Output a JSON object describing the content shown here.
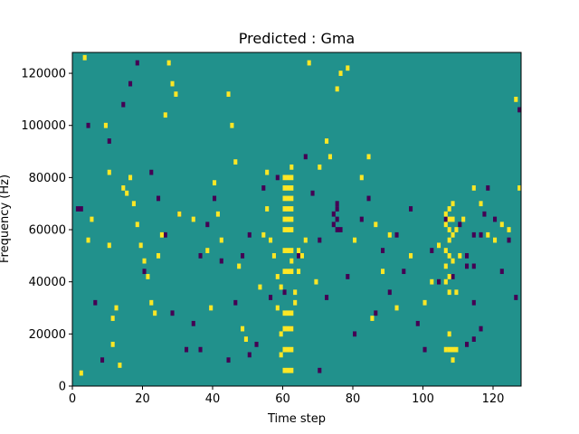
{
  "chart_data": {
    "type": "heatmap",
    "title": "Predicted : Gma",
    "xlabel": "Time step",
    "ylabel": "Frequency (Hz)",
    "xlim": [
      0,
      128
    ],
    "ylim": [
      0,
      128000
    ],
    "x_ticks": [
      0,
      20,
      40,
      60,
      80,
      100,
      120
    ],
    "y_ticks": [
      0,
      20000,
      40000,
      60000,
      80000,
      100000,
      120000
    ],
    "y_tick_labels": [
      "0",
      "20000",
      "40000",
      "60000",
      "80000",
      "100000",
      "120000"
    ],
    "grid": false,
    "legend": "none",
    "colors": {
      "background": "#21918c",
      "high": "#fde725",
      "low": "#440154"
    },
    "cells_note_free": true,
    "high_cells": [
      [
        2,
        5
      ],
      [
        3,
        126
      ],
      [
        4,
        56
      ],
      [
        5,
        64
      ],
      [
        9,
        100
      ],
      [
        10,
        54
      ],
      [
        10,
        82
      ],
      [
        11,
        26
      ],
      [
        11,
        16
      ],
      [
        12,
        30
      ],
      [
        13,
        8
      ],
      [
        14,
        76
      ],
      [
        15,
        74
      ],
      [
        16,
        80
      ],
      [
        17,
        70
      ],
      [
        18,
        62
      ],
      [
        19,
        54
      ],
      [
        20,
        48
      ],
      [
        21,
        42
      ],
      [
        22,
        32
      ],
      [
        23,
        28
      ],
      [
        24,
        50
      ],
      [
        25,
        58
      ],
      [
        26,
        104
      ],
      [
        27,
        124
      ],
      [
        28,
        116
      ],
      [
        29,
        112
      ],
      [
        30,
        66
      ],
      [
        34,
        64
      ],
      [
        38,
        52
      ],
      [
        39,
        30
      ],
      [
        40,
        78
      ],
      [
        41,
        66
      ],
      [
        42,
        56
      ],
      [
        44,
        112
      ],
      [
        45,
        100
      ],
      [
        46,
        86
      ],
      [
        47,
        46
      ],
      [
        48,
        22
      ],
      [
        49,
        18
      ],
      [
        53,
        38
      ],
      [
        54,
        58
      ],
      [
        55,
        82
      ],
      [
        55,
        68
      ],
      [
        56,
        56
      ],
      [
        57,
        50
      ],
      [
        58,
        30
      ],
      [
        58,
        42
      ],
      [
        59,
        38
      ],
      [
        59,
        20
      ],
      [
        59,
        12
      ],
      [
        60,
        6
      ],
      [
        60,
        14
      ],
      [
        60,
        22
      ],
      [
        60,
        28
      ],
      [
        60,
        44
      ],
      [
        60,
        52
      ],
      [
        60,
        60
      ],
      [
        60,
        64
      ],
      [
        60,
        68
      ],
      [
        60,
        72
      ],
      [
        60,
        76
      ],
      [
        60,
        80
      ],
      [
        61,
        6
      ],
      [
        61,
        14
      ],
      [
        61,
        22
      ],
      [
        61,
        28
      ],
      [
        61,
        44
      ],
      [
        61,
        52
      ],
      [
        61,
        60
      ],
      [
        61,
        64
      ],
      [
        61,
        68
      ],
      [
        61,
        72
      ],
      [
        61,
        76
      ],
      [
        61,
        80
      ],
      [
        62,
        6
      ],
      [
        62,
        14
      ],
      [
        62,
        22
      ],
      [
        62,
        28
      ],
      [
        62,
        44
      ],
      [
        62,
        48
      ],
      [
        62,
        52
      ],
      [
        62,
        60
      ],
      [
        62,
        64
      ],
      [
        62,
        68
      ],
      [
        62,
        72
      ],
      [
        62,
        76
      ],
      [
        62,
        80
      ],
      [
        62,
        84
      ],
      [
        63,
        32
      ],
      [
        63,
        36
      ],
      [
        64,
        44
      ],
      [
        64,
        52
      ],
      [
        65,
        50
      ],
      [
        66,
        56
      ],
      [
        67,
        124
      ],
      [
        69,
        40
      ],
      [
        70,
        84
      ],
      [
        72,
        94
      ],
      [
        73,
        88
      ],
      [
        75,
        114
      ],
      [
        76,
        120
      ],
      [
        78,
        122
      ],
      [
        80,
        56
      ],
      [
        82,
        80
      ],
      [
        84,
        88
      ],
      [
        85,
        26
      ],
      [
        86,
        62
      ],
      [
        88,
        44
      ],
      [
        90,
        58
      ],
      [
        92,
        30
      ],
      [
        96,
        50
      ],
      [
        100,
        32
      ],
      [
        102,
        40
      ],
      [
        104,
        54
      ],
      [
        106,
        14
      ],
      [
        106,
        40
      ],
      [
        106,
        46
      ],
      [
        106,
        52
      ],
      [
        106,
        62
      ],
      [
        106,
        66
      ],
      [
        107,
        14
      ],
      [
        107,
        20
      ],
      [
        107,
        36
      ],
      [
        107,
        42
      ],
      [
        107,
        50
      ],
      [
        107,
        56
      ],
      [
        107,
        60
      ],
      [
        107,
        64
      ],
      [
        107,
        68
      ],
      [
        108,
        10
      ],
      [
        108,
        14
      ],
      [
        108,
        48
      ],
      [
        108,
        58
      ],
      [
        108,
        64
      ],
      [
        108,
        70
      ],
      [
        109,
        14
      ],
      [
        109,
        36
      ],
      [
        109,
        60
      ],
      [
        110,
        50
      ],
      [
        111,
        64
      ],
      [
        114,
        76
      ],
      [
        116,
        70
      ],
      [
        118,
        58
      ],
      [
        120,
        56
      ],
      [
        122,
        62
      ],
      [
        124,
        60
      ],
      [
        126,
        110
      ],
      [
        127,
        76
      ]
    ],
    "low_cells": [
      [
        1,
        68
      ],
      [
        2,
        68
      ],
      [
        4,
        100
      ],
      [
        6,
        32
      ],
      [
        8,
        10
      ],
      [
        10,
        94
      ],
      [
        14,
        108
      ],
      [
        16,
        116
      ],
      [
        18,
        124
      ],
      [
        20,
        44
      ],
      [
        22,
        82
      ],
      [
        24,
        72
      ],
      [
        26,
        58
      ],
      [
        28,
        28
      ],
      [
        30,
        66
      ],
      [
        32,
        14
      ],
      [
        34,
        24
      ],
      [
        36,
        50
      ],
      [
        38,
        62
      ],
      [
        40,
        72
      ],
      [
        42,
        48
      ],
      [
        44,
        10
      ],
      [
        46,
        32
      ],
      [
        48,
        50
      ],
      [
        50,
        58
      ],
      [
        52,
        16
      ],
      [
        54,
        76
      ],
      [
        56,
        34
      ],
      [
        58,
        80
      ],
      [
        60,
        36
      ],
      [
        62,
        22
      ],
      [
        64,
        50
      ],
      [
        66,
        88
      ],
      [
        68,
        74
      ],
      [
        70,
        56
      ],
      [
        72,
        34
      ],
      [
        74,
        66
      ],
      [
        76,
        60
      ],
      [
        78,
        42
      ],
      [
        80,
        20
      ],
      [
        82,
        64
      ],
      [
        84,
        72
      ],
      [
        86,
        28
      ],
      [
        88,
        52
      ],
      [
        90,
        36
      ],
      [
        92,
        58
      ],
      [
        94,
        44
      ],
      [
        96,
        68
      ],
      [
        98,
        24
      ],
      [
        100,
        14
      ],
      [
        102,
        52
      ],
      [
        104,
        40
      ],
      [
        106,
        64
      ],
      [
        108,
        42
      ],
      [
        110,
        62
      ],
      [
        112,
        50
      ],
      [
        114,
        32
      ],
      [
        116,
        22
      ],
      [
        118,
        76
      ],
      [
        120,
        64
      ],
      [
        122,
        44
      ],
      [
        124,
        56
      ],
      [
        126,
        34
      ],
      [
        127,
        106
      ],
      [
        36,
        14
      ],
      [
        50,
        12
      ],
      [
        70,
        6
      ],
      [
        75,
        70
      ],
      [
        75,
        68
      ],
      [
        75,
        64
      ],
      [
        75,
        60
      ],
      [
        74,
        62
      ],
      [
        112,
        16
      ],
      [
        114,
        18
      ],
      [
        114,
        46
      ],
      [
        112,
        46
      ],
      [
        114,
        58
      ],
      [
        116,
        58
      ],
      [
        117,
        66
      ]
    ]
  }
}
